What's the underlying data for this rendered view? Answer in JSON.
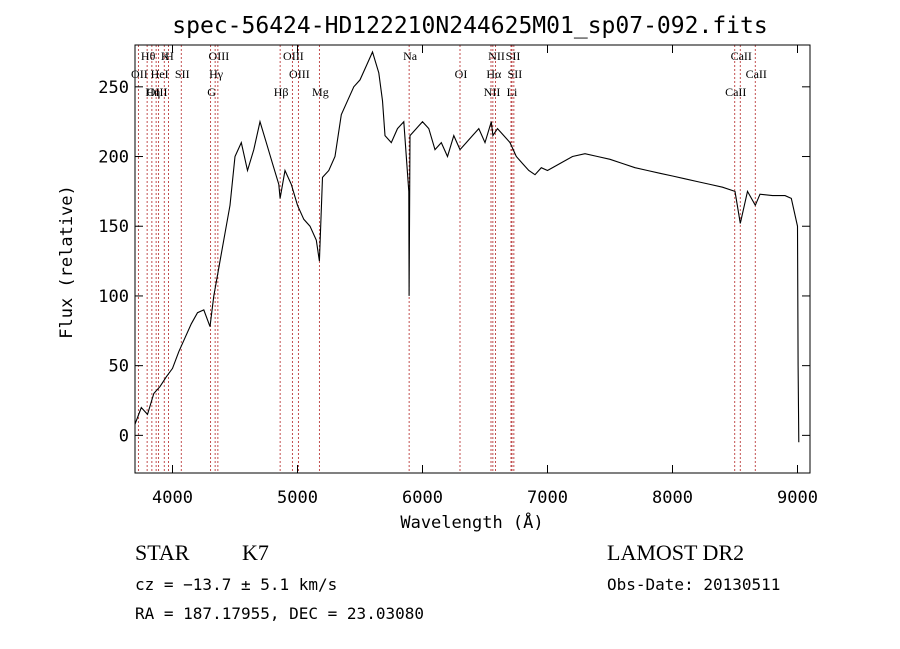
{
  "chart_data": {
    "type": "line",
    "title": "spec-56424-HD122210N244625M01_sp07-092.fits",
    "xlabel": "Wavelength (Å)",
    "ylabel": "Flux (relative)",
    "xlim": [
      3700,
      9100
    ],
    "ylim": [
      -27,
      280
    ],
    "x_ticks": [
      "4000",
      "5000",
      "6000",
      "7000",
      "8000",
      "9000"
    ],
    "y_ticks": [
      "0",
      "50",
      "100",
      "150",
      "200",
      "250"
    ],
    "x_tick_values": [
      4000,
      5000,
      6000,
      7000,
      8000,
      9000
    ],
    "y_tick_values": [
      0,
      50,
      100,
      150,
      200,
      250
    ],
    "grid": false,
    "series": [
      {
        "x": [
          3700,
          3750,
          3800,
          3850,
          3900,
          3950,
          4000,
          4050,
          4100,
          4150,
          4200,
          4250,
          4300,
          4330,
          4380,
          4420,
          4460,
          4500,
          4550,
          4600,
          4650,
          4700,
          4750,
          4800,
          4850,
          4861,
          4900,
          4950,
          5000,
          5050,
          5100,
          5150,
          5175,
          5200,
          5250,
          5300,
          5350,
          5400,
          5450,
          5500,
          5550,
          5600,
          5650,
          5680,
          5700,
          5750,
          5800,
          5850,
          5890,
          5893,
          5900,
          5950,
          6000,
          6050,
          6100,
          6150,
          6200,
          6250,
          6300,
          6350,
          6400,
          6450,
          6500,
          6550,
          6563,
          6600,
          6650,
          6700,
          6750,
          6800,
          6850,
          6900,
          6950,
          7000,
          7100,
          7200,
          7300,
          7400,
          7500,
          7600,
          7700,
          7800,
          7900,
          8000,
          8100,
          8200,
          8300,
          8400,
          8500,
          8542,
          8600,
          8662,
          8700,
          8800,
          8900,
          8950,
          9000,
          9005,
          9010
        ],
        "y": [
          8,
          20,
          15,
          30,
          35,
          42,
          48,
          60,
          70,
          80,
          88,
          90,
          78,
          100,
          125,
          145,
          165,
          200,
          210,
          190,
          205,
          225,
          210,
          195,
          180,
          170,
          190,
          180,
          165,
          155,
          150,
          140,
          125,
          185,
          190,
          200,
          230,
          240,
          250,
          255,
          265,
          275,
          260,
          240,
          215,
          210,
          220,
          225,
          175,
          100,
          215,
          220,
          225,
          220,
          205,
          210,
          200,
          215,
          205,
          210,
          215,
          220,
          210,
          225,
          215,
          220,
          215,
          210,
          200,
          195,
          190,
          187,
          192,
          190,
          195,
          200,
          202,
          200,
          198,
          195,
          192,
          190,
          188,
          186,
          184,
          182,
          180,
          178,
          175,
          152,
          175,
          165,
          173,
          172,
          172,
          170,
          150,
          50,
          -5
        ]
      }
    ],
    "line_marks": [
      {
        "label": "Hθ",
        "x": 3797
      },
      {
        "label": "OII",
        "x": 3727
      },
      {
        "label": "OIII",
        "x": 3869
      },
      {
        "label": "K",
        "x": 3934
      },
      {
        "label": "HeI",
        "x": 3889
      },
      {
        "label": "Hη",
        "x": 3835
      },
      {
        "label": "H",
        "x": 3968
      },
      {
        "label": "SII",
        "x": 4070
      },
      {
        "label": "G",
        "x": 4305
      },
      {
        "label": "OIII",
        "x": 4363
      },
      {
        "label": "Hγ",
        "x": 4341
      },
      {
        "label": "Hβ",
        "x": 4861
      },
      {
        "label": "OIII",
        "x": 4959
      },
      {
        "label": "OIII",
        "x": 5007
      },
      {
        "label": "Mg",
        "x": 5175
      },
      {
        "label": "Na",
        "x": 5893
      },
      {
        "label": "OI",
        "x": 6300
      },
      {
        "label": "NII",
        "x": 6548
      },
      {
        "label": "NII",
        "x": 6584
      },
      {
        "label": "Hα",
        "x": 6563
      },
      {
        "label": "Li",
        "x": 6708
      },
      {
        "label": "SII",
        "x": 6716
      },
      {
        "label": "SII",
        "x": 6731
      },
      {
        "label": "CaII",
        "x": 8498
      },
      {
        "label": "CaII",
        "x": 8542
      },
      {
        "label": "CaII",
        "x": 8662
      }
    ]
  },
  "info": {
    "object_class": "STAR",
    "subclass": "K7",
    "redshift": "cz = −13.7 ± 5.1 km/s",
    "coords": "RA = 187.17955, DEC =  23.03080",
    "survey": "LAMOST DR2",
    "obs_date": "Obs-Date: 20130511"
  }
}
